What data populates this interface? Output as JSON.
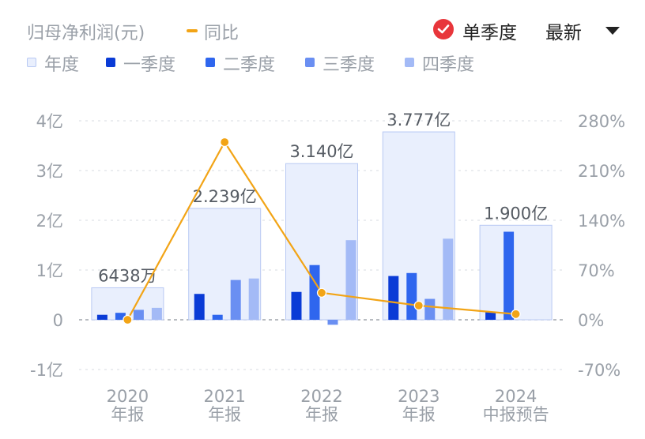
{
  "header": {
    "metric_title": "归母净利润(元)",
    "yoy_label": "同比",
    "mode_label": "单季度",
    "dropdown_value": "最新"
  },
  "legend": [
    {
      "label": "年度",
      "color": "#e9effd"
    },
    {
      "label": "一季度",
      "color": "#0a3bd6"
    },
    {
      "label": "二季度",
      "color": "#2f66ee"
    },
    {
      "label": "三季度",
      "color": "#6a8ff2"
    },
    {
      "label": "四季度",
      "color": "#a3baf6"
    }
  ],
  "chart_data": {
    "type": "bar",
    "categories": [
      [
        "2020",
        "年报"
      ],
      [
        "2021",
        "年报"
      ],
      [
        "2022",
        "年报"
      ],
      [
        "2023",
        "年报"
      ],
      [
        "2024",
        "中报预告"
      ]
    ],
    "annual": {
      "values": [
        0.6438,
        2.239,
        3.14,
        3.777,
        1.9
      ],
      "labels": [
        "6438万",
        "2.239亿",
        "3.140亿",
        "3.777亿",
        "1.900亿"
      ],
      "unit": "亿"
    },
    "series": [
      {
        "name": "一季度",
        "values": [
          0.1,
          0.52,
          0.56,
          0.88,
          0.15
        ]
      },
      {
        "name": "二季度",
        "values": [
          0.14,
          0.1,
          1.1,
          0.94,
          1.77
        ]
      },
      {
        "name": "三季度",
        "values": [
          0.2,
          0.8,
          -0.1,
          0.42,
          null
        ]
      },
      {
        "name": "四季度",
        "values": [
          0.24,
          0.83,
          1.6,
          1.63,
          null
        ]
      }
    ],
    "yoy": {
      "name": "同比",
      "values": [
        0,
        250,
        38,
        20,
        8
      ]
    },
    "left_axis": {
      "ticks": [
        "4亿",
        "3亿",
        "2亿",
        "1亿",
        "0",
        "-1亿"
      ],
      "ylim": [
        -1,
        4
      ]
    },
    "right_axis": {
      "ticks": [
        "280%",
        "210%",
        "140%",
        "70%",
        "0%",
        "-70%"
      ],
      "ylim": [
        -70,
        280
      ]
    },
    "colors": {
      "annual_fill": "#e9effd",
      "annual_border": "#b8c9f3",
      "q1": "#0a3bd6",
      "q2": "#2f66ee",
      "q3": "#6a8ff2",
      "q4": "#a3baf6",
      "yoy": "#f2a416",
      "grid": "#d7dbe2",
      "axis_text": "#9aa0a8",
      "label_text": "#555b63"
    }
  }
}
